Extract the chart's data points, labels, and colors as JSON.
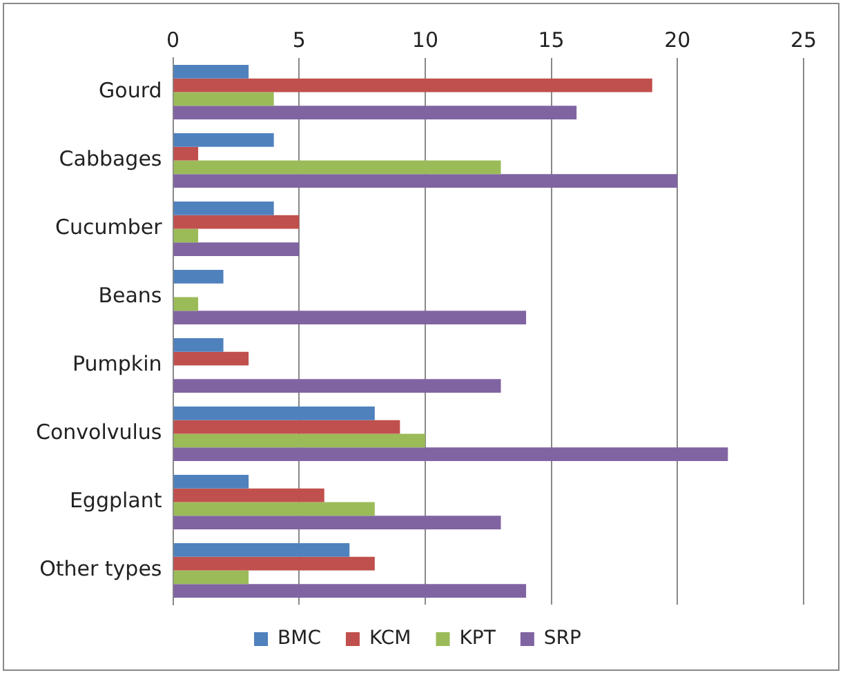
{
  "chart_data": {
    "type": "bar",
    "orientation": "horizontal",
    "categories": [
      "Gourd",
      "Cabbages",
      "Cucumber",
      "Beans",
      "Pumpkin",
      "Convolvulus",
      "Eggplant",
      "Other types"
    ],
    "series": [
      {
        "name": "BMC",
        "color": "#4f81bd",
        "values": [
          3,
          4,
          4,
          2,
          2,
          8,
          3,
          7
        ]
      },
      {
        "name": "KCM",
        "color": "#c0504d",
        "values": [
          19,
          1,
          5,
          0,
          3,
          9,
          6,
          8
        ]
      },
      {
        "name": "KPT",
        "color": "#9bbb59",
        "values": [
          4,
          13,
          1,
          1,
          0,
          10,
          8,
          3
        ]
      },
      {
        "name": "SRP",
        "color": "#8064a2",
        "values": [
          16,
          20,
          5,
          14,
          13,
          22,
          13,
          14
        ]
      }
    ],
    "xlim": [
      0,
      25
    ],
    "xticks": [
      0,
      5,
      10,
      15,
      20,
      25
    ],
    "grid": "x",
    "legend": "bottom"
  }
}
